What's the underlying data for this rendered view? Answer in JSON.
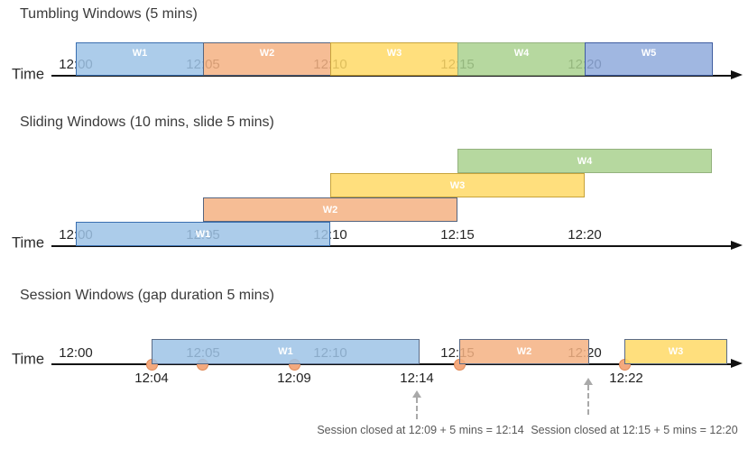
{
  "colors": {
    "blue": "#9DC3E6",
    "orange": "#F4B183",
    "yellow": "#FFD966",
    "green": "#A9D18E",
    "periwinkle": "#8FAADC",
    "event_dot_fill": "#F4A97E",
    "event_dot_border": "#E08A57",
    "annotation_arrow_color": "#A9A9A9",
    "axis_color": "#111111"
  },
  "border_colors": {
    "blue": "#3A6FB0",
    "orange": "#55657F",
    "yellow": "#C7A33B",
    "green": "#94B27E",
    "periwinkle": "#3F5DA0",
    "session": "#5A6B87"
  },
  "tumbling": {
    "title": "Tumbling Windows (5 mins)",
    "time_label": "Time",
    "ticks": [
      "12:00",
      "12:05",
      "12:10",
      "12:15",
      "12:20"
    ],
    "windows": [
      {
        "label": "W1",
        "color": "blue"
      },
      {
        "label": "W2",
        "color": "orange"
      },
      {
        "label": "W3",
        "color": "yellow"
      },
      {
        "label": "W4",
        "color": "green"
      },
      {
        "label": "W5",
        "color": "periwinkle"
      }
    ]
  },
  "sliding": {
    "title": "Sliding Windows (10 mins, slide 5 mins)",
    "time_label": "Time",
    "ticks": [
      "12:00",
      "12:05",
      "12:10",
      "12:15",
      "12:20"
    ],
    "windows": [
      {
        "label": "W1",
        "color": "blue"
      },
      {
        "label": "W2",
        "color": "orange"
      },
      {
        "label": "W3",
        "color": "yellow"
      },
      {
        "label": "W4",
        "color": "green"
      }
    ]
  },
  "session": {
    "title": "Session Windows (gap duration 5 mins)",
    "time_label": "Time",
    "ticks": [
      "12:00",
      "12:05",
      "12:10",
      "12:15",
      "12:20"
    ],
    "windows": [
      {
        "label": "W1",
        "color": "blue"
      },
      {
        "label": "W2",
        "color": "orange"
      },
      {
        "label": "W3",
        "color": "yellow"
      }
    ],
    "event_labels": [
      "12:04",
      "12:09",
      "12:14",
      "12:22"
    ],
    "annotations": [
      "Session closed at 12:09 + 5 mins = 12:14",
      "Session closed at 12:15 + 5 mins = 12:20"
    ]
  }
}
